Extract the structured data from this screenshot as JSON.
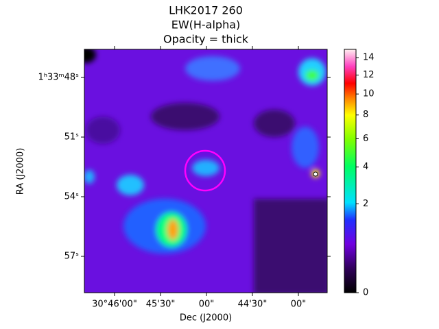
{
  "chart_data": {
    "type": "image",
    "title": [
      "LHK2017 260",
      "EW(H-alpha)",
      "Opacity = thick"
    ],
    "x_label": "Dec (J2000)",
    "y_label": "RA (J2000)",
    "xlim": [
      30.77214,
      30.72811
    ],
    "xticks": [
      {
        "value": 30.76667,
        "label": "30°46'00\""
      },
      {
        "value": 30.75833,
        "label": "45'30\""
      },
      {
        "value": 30.75,
        "label": "00\""
      },
      {
        "value": 30.74167,
        "label": "44'30\""
      },
      {
        "value": 30.73333,
        "label": "00\""
      }
    ],
    "ylim": [
      46.586,
      58.828
    ],
    "yticks": [
      {
        "value": 48,
        "label": "1ʰ33ᵐ48ˢ"
      },
      {
        "value": 51,
        "label": "51ˢ"
      },
      {
        "value": 54,
        "label": "54ˢ"
      },
      {
        "value": 57,
        "label": "57ˢ"
      }
    ],
    "colorbar": {
      "lim": [
        0,
        15
      ],
      "stretch": "sqrt",
      "ticks": [
        0,
        2,
        4,
        6,
        8,
        10,
        12,
        14
      ]
    }
  }
}
